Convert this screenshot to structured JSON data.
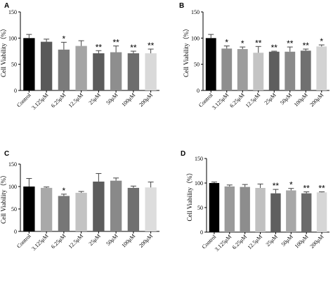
{
  "chart_data": [
    {
      "panel": "A",
      "type": "bar",
      "ylabel": "Cell Viability（%）",
      "ylim": [
        0,
        150
      ],
      "yticks": [
        0,
        50,
        100,
        150
      ],
      "categories": [
        "Control",
        "3.125μM",
        "6.25μM",
        "12.5μM",
        "25μM",
        "50μM",
        "100μM",
        "200μM"
      ],
      "values": [
        100,
        93,
        78,
        85,
        71,
        73,
        71,
        71
      ],
      "errors": [
        7,
        5,
        14,
        10,
        5,
        12,
        4,
        8
      ],
      "significance": [
        "",
        "",
        "*",
        "",
        "**",
        "**",
        "**",
        "**"
      ],
      "colors": [
        "#000000",
        "#595959",
        "#7b7b7b",
        "#a4a4a4",
        "#5c5c5c",
        "#8e8e8e",
        "#6d6d6d",
        "#d9d9d9"
      ]
    },
    {
      "panel": "B",
      "type": "bar",
      "ylabel": "Cell Viability（%）",
      "ylim": [
        0,
        150
      ],
      "yticks": [
        0,
        50,
        100,
        150
      ],
      "categories": [
        "Control",
        "3.125μM",
        "6.25μM",
        "12.5μM",
        "25μM",
        "50μM",
        "100μM",
        "200μM"
      ],
      "values": [
        100,
        80,
        79,
        72,
        74,
        74,
        76,
        84
      ],
      "errors": [
        7,
        5,
        4,
        12,
        1,
        9,
        3,
        3
      ],
      "significance": [
        "",
        "*",
        "*",
        "**",
        "**",
        "**",
        "**",
        "*"
      ],
      "colors": [
        "#000000",
        "#8e8e8e",
        "#9d9d9d",
        "#c4c4c4",
        "#5e5e5e",
        "#8a8a8a",
        "#707070",
        "#d3d3d3"
      ]
    },
    {
      "panel": "C",
      "type": "bar",
      "ylabel": "Cell Viability（%）",
      "ylim": [
        0,
        150
      ],
      "yticks": [
        0,
        50,
        100,
        150
      ],
      "categories": [
        "Control",
        "3.125μM",
        "6.25μM",
        "12.5μM",
        "25μM",
        "50μM",
        "100μM",
        "200μM"
      ],
      "values": [
        100,
        97,
        79,
        86,
        111,
        113,
        97,
        98
      ],
      "errors": [
        18,
        2,
        4,
        3,
        18,
        6,
        4,
        12
      ],
      "significance": [
        "",
        "",
        "*",
        "",
        "",
        "",
        "",
        ""
      ],
      "colors": [
        "#000000",
        "#a9a9a9",
        "#777777",
        "#c3c3c3",
        "#5d5d5d",
        "#898989",
        "#707070",
        "#dddddd"
      ]
    },
    {
      "panel": "D",
      "type": "bar",
      "ylabel": "Cell Viability（%）",
      "ylim": [
        0,
        150
      ],
      "yticks": [
        0,
        50,
        100,
        150
      ],
      "categories": [
        "Control",
        "3.125μM",
        "6.25μM",
        "12.5μM",
        "25μM",
        "50μM",
        "100μM",
        "200μM"
      ],
      "values": [
        100,
        93,
        92,
        90,
        79,
        85,
        79,
        81
      ],
      "errors": [
        2,
        3,
        5,
        8,
        8,
        4,
        3,
        1
      ],
      "significance": [
        "",
        "",
        "",
        "",
        "**",
        "*",
        "**",
        "**"
      ],
      "colors": [
        "#000000",
        "#9a9a9a",
        "#8d8d8d",
        "#c0c0c0",
        "#5f5f5f",
        "#a7a7a7",
        "#6b6b6b",
        "#d6d6d6"
      ]
    }
  ]
}
